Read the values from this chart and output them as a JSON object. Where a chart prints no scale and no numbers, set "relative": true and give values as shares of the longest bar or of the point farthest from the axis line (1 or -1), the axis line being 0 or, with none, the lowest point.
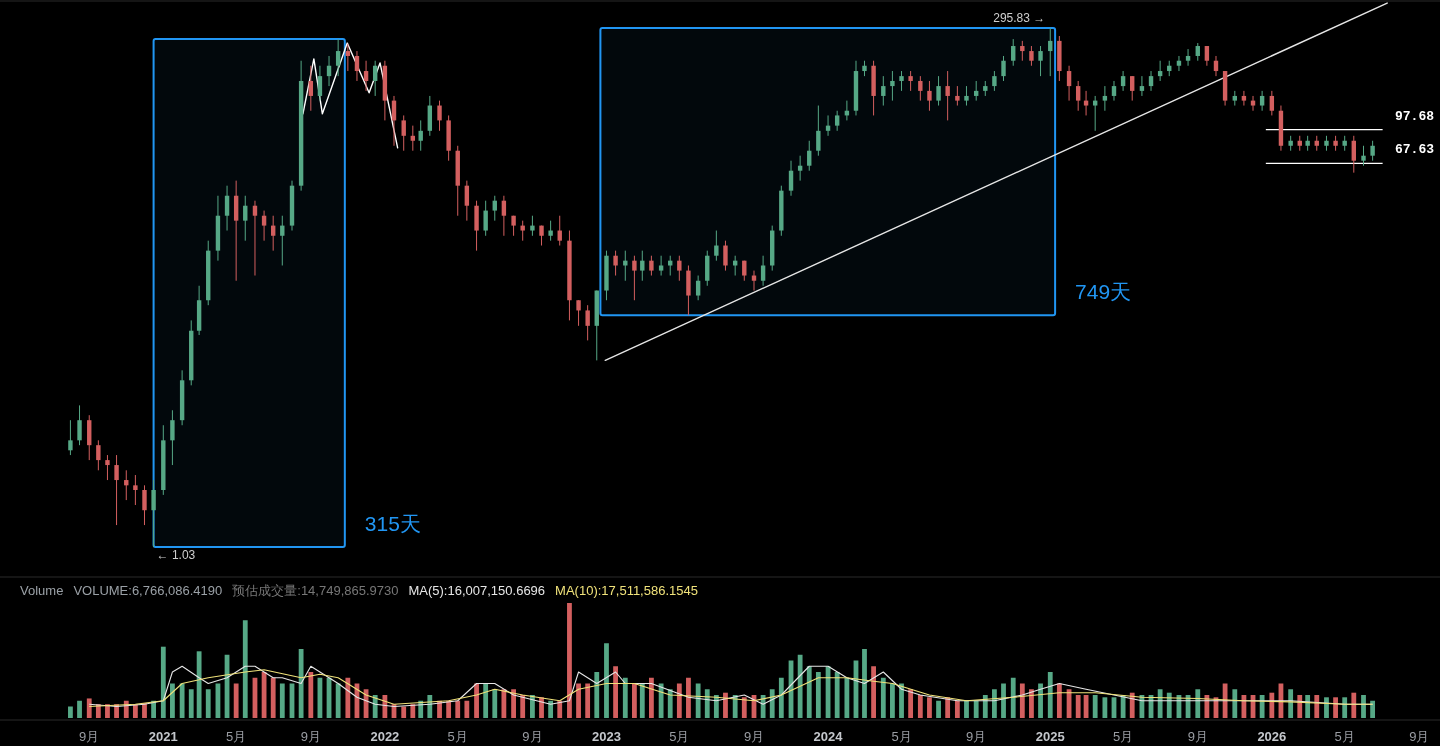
{
  "chart_data": [
    {
      "type": "candlestick",
      "log": true,
      "tick_labels": false,
      "xlim": [
        "2020-04-07",
        "2026-10-05"
      ],
      "ylim": [
        0.76,
        397
      ],
      "x": [
        "2020-08-01",
        "2020-08-16",
        "2020-09-01",
        "2020-09-16",
        "2020-10-01",
        "2020-10-16",
        "2020-11-01",
        "2020-11-16",
        "2020-12-01",
        "2020-12-16",
        "2021-01-01",
        "2021-01-16",
        "2021-02-01",
        "2021-02-16",
        "2021-03-01",
        "2021-03-16",
        "2021-04-01",
        "2021-04-16",
        "2021-05-01",
        "2021-05-16",
        "2021-06-01",
        "2021-06-16",
        "2021-07-01",
        "2021-07-16",
        "2021-08-01",
        "2021-08-16",
        "2021-09-01",
        "2021-09-16",
        "2021-10-01",
        "2021-10-16",
        "2021-11-01",
        "2021-11-16",
        "2021-12-01",
        "2021-12-16",
        "2022-01-01",
        "2022-01-16",
        "2022-02-01",
        "2022-02-16",
        "2022-03-01",
        "2022-03-16",
        "2022-04-01",
        "2022-04-16",
        "2022-05-01",
        "2022-05-16",
        "2022-06-01",
        "2022-06-16",
        "2022-07-01",
        "2022-07-16",
        "2022-08-01",
        "2022-08-16",
        "2022-09-01",
        "2022-09-16",
        "2022-10-01",
        "2022-10-16",
        "2022-11-01",
        "2022-11-16",
        "2022-12-01",
        "2022-12-16",
        "2023-01-01",
        "2023-01-16",
        "2023-02-01",
        "2023-02-16",
        "2023-03-01",
        "2023-03-16",
        "2023-04-01",
        "2023-04-16",
        "2023-05-01",
        "2023-05-16",
        "2023-06-01",
        "2023-06-16",
        "2023-07-01",
        "2023-07-16",
        "2023-08-01",
        "2023-08-16",
        "2023-09-01",
        "2023-09-16",
        "2023-10-01",
        "2023-10-16",
        "2023-11-01",
        "2023-11-16",
        "2023-12-01",
        "2023-12-16",
        "2024-01-01",
        "2024-01-16",
        "2024-02-01",
        "2024-02-16",
        "2024-03-01",
        "2024-03-16",
        "2024-04-01",
        "2024-04-16",
        "2024-05-01",
        "2024-05-16",
        "2024-06-01",
        "2024-06-16",
        "2024-07-01",
        "2024-07-16",
        "2024-08-01",
        "2024-08-16",
        "2024-09-01",
        "2024-09-16",
        "2024-10-01",
        "2024-10-16",
        "2024-11-01",
        "2024-11-16",
        "2024-12-01",
        "2024-12-16",
        "2025-01-01",
        "2025-01-16",
        "2025-02-01",
        "2025-02-16",
        "2025-03-01",
        "2025-03-16",
        "2025-04-01",
        "2025-04-16",
        "2025-05-01",
        "2025-05-16",
        "2025-06-01",
        "2025-06-16",
        "2025-07-01",
        "2025-07-16",
        "2025-08-01",
        "2025-08-16",
        "2025-09-01",
        "2025-09-16",
        "2025-10-01",
        "2025-10-16",
        "2025-11-01",
        "2025-11-16",
        "2025-12-01",
        "2025-12-16",
        "2026-01-01",
        "2026-01-16",
        "2026-02-01",
        "2026-02-16",
        "2026-03-01",
        "2026-03-16",
        "2026-04-01",
        "2026-04-16",
        "2026-05-01",
        "2026-05-16",
        "2026-06-01",
        "2026-06-16"
      ],
      "ohlc": [
        [
          2.96,
          4.11,
          2.81,
          3.3
        ],
        [
          3.3,
          4.83,
          3.13,
          4.11
        ],
        [
          4.11,
          4.34,
          2.66,
          3.13
        ],
        [
          3.13,
          3.3,
          2.38,
          2.66
        ],
        [
          2.66,
          2.81,
          2.14,
          2.52
        ],
        [
          2.52,
          2.81,
          1.31,
          2.14
        ],
        [
          2.14,
          2.38,
          1.72,
          2.02
        ],
        [
          2.02,
          2.26,
          1.63,
          1.92
        ],
        [
          1.92,
          2.02,
          1.31,
          1.54
        ],
        [
          1.54,
          2.14,
          1.03,
          1.92
        ],
        [
          1.92,
          3.89,
          1.82,
          3.3
        ],
        [
          3.3,
          4.58,
          2.52,
          4.11
        ],
        [
          4.11,
          7.08,
          3.89,
          6.35
        ],
        [
          6.35,
          12.2,
          6.01,
          10.9
        ],
        [
          10.9,
          17.8,
          10.4,
          15.2
        ],
        [
          15.2,
          29.1,
          14.4,
          26.1
        ],
        [
          26.1,
          47.5,
          23.4,
          38.2
        ],
        [
          38.2,
          53.0,
          32.5,
          47.5
        ],
        [
          47.5,
          56.0,
          18.8,
          36.2
        ],
        [
          36.2,
          47.5,
          29.1,
          42.6
        ],
        [
          42.6,
          45.0,
          19.9,
          38.2
        ],
        [
          38.2,
          40.4,
          29.1,
          34.3
        ],
        [
          34.3,
          38.2,
          26.1,
          30.7
        ],
        [
          30.7,
          38.2,
          22.2,
          34.3
        ],
        [
          34.3,
          56.0,
          32.5,
          53.0
        ],
        [
          53.0,
          207,
          50.2,
          166
        ],
        [
          166,
          196,
          120,
          141
        ],
        [
          141,
          196,
          134,
          175
        ],
        [
          175,
          218,
          157,
          196
        ],
        [
          196,
          262,
          175,
          230
        ],
        [
          230,
          249,
          185,
          218
        ],
        [
          218,
          230,
          166,
          185
        ],
        [
          185,
          207,
          149,
          166
        ],
        [
          166,
          207,
          141,
          196
        ],
        [
          196,
          207,
          108,
          134
        ],
        [
          134,
          141,
          81.9,
          108
        ],
        [
          108,
          114,
          77.6,
          91.3
        ],
        [
          91.3,
          102,
          77.6,
          86.5
        ],
        [
          86.5,
          108,
          77.6,
          96.4
        ],
        [
          96.4,
          141,
          91.3,
          127
        ],
        [
          127,
          134,
          96.4,
          108
        ],
        [
          108,
          114,
          69.6,
          77.6
        ],
        [
          77.6,
          81.9,
          38.2,
          53.0
        ],
        [
          53.0,
          56.0,
          36.2,
          42.6
        ],
        [
          42.6,
          45.0,
          26.1,
          32.5
        ],
        [
          32.5,
          45.0,
          30.7,
          40.4
        ],
        [
          40.4,
          47.5,
          36.2,
          45.0
        ],
        [
          45.0,
          47.5,
          30.7,
          38.2
        ],
        [
          38.2,
          38.2,
          30.7,
          34.3
        ],
        [
          34.3,
          36.2,
          29.1,
          32.5
        ],
        [
          32.5,
          38.2,
          30.7,
          34.3
        ],
        [
          34.3,
          34.3,
          27.6,
          30.7
        ],
        [
          30.7,
          36.2,
          29.1,
          32.5
        ],
        [
          32.5,
          38.2,
          27.6,
          29.1
        ],
        [
          29.1,
          32.5,
          12.2,
          15.2
        ],
        [
          15.2,
          15.2,
          11.5,
          13.6
        ],
        [
          13.6,
          14.4,
          9.81,
          11.5
        ],
        [
          11.5,
          16.9,
          7.89,
          16.9
        ],
        [
          16.9,
          26.1,
          15.2,
          24.7
        ],
        [
          24.7,
          26.1,
          19.9,
          22.2
        ],
        [
          22.2,
          26.1,
          18.8,
          23.4
        ],
        [
          23.4,
          24.7,
          15.2,
          21.0
        ],
        [
          21.0,
          26.1,
          18.8,
          23.4
        ],
        [
          23.4,
          24.7,
          19.9,
          21.0
        ],
        [
          21.0,
          24.7,
          19.9,
          22.2
        ],
        [
          22.2,
          24.7,
          19.9,
          23.4
        ],
        [
          23.4,
          24.7,
          18.8,
          21.0
        ],
        [
          21.0,
          22.2,
          12.9,
          16.0
        ],
        [
          16.0,
          19.9,
          15.2,
          18.8
        ],
        [
          18.8,
          26.1,
          17.8,
          24.7
        ],
        [
          24.7,
          32.5,
          23.4,
          27.6
        ],
        [
          27.6,
          29.1,
          21.0,
          22.2
        ],
        [
          22.2,
          24.7,
          19.9,
          23.4
        ],
        [
          23.4,
          23.4,
          18.8,
          19.9
        ],
        [
          19.9,
          21.0,
          16.9,
          18.8
        ],
        [
          18.8,
          24.7,
          17.8,
          22.2
        ],
        [
          22.2,
          34.3,
          21.0,
          32.5
        ],
        [
          32.5,
          53.0,
          30.7,
          50.2
        ],
        [
          50.2,
          69.6,
          47.5,
          62.4
        ],
        [
          62.4,
          73.5,
          56.0,
          65.9
        ],
        [
          65.9,
          86.5,
          62.4,
          77.6
        ],
        [
          77.6,
          127,
          73.5,
          96.4
        ],
        [
          96.4,
          114,
          91.3,
          102
        ],
        [
          102,
          120,
          96.4,
          114
        ],
        [
          114,
          134,
          108,
          120
        ],
        [
          120,
          207,
          114,
          185
        ],
        [
          185,
          207,
          175,
          196
        ],
        [
          196,
          207,
          114,
          141
        ],
        [
          141,
          175,
          127,
          157
        ],
        [
          157,
          185,
          134,
          166
        ],
        [
          166,
          185,
          149,
          175
        ],
        [
          175,
          185,
          149,
          166
        ],
        [
          166,
          175,
          134,
          149
        ],
        [
          149,
          166,
          120,
          134
        ],
        [
          134,
          175,
          127,
          157
        ],
        [
          157,
          185,
          108,
          141
        ],
        [
          141,
          157,
          127,
          134
        ],
        [
          134,
          157,
          127,
          141
        ],
        [
          141,
          166,
          134,
          149
        ],
        [
          149,
          166,
          141,
          157
        ],
        [
          157,
          185,
          149,
          175
        ],
        [
          175,
          218,
          166,
          207
        ],
        [
          207,
          262,
          196,
          243
        ],
        [
          243,
          257,
          207,
          230
        ],
        [
          230,
          243,
          196,
          207
        ],
        [
          207,
          243,
          175,
          230
        ],
        [
          230,
          295.83,
          175,
          257
        ],
        [
          257,
          271,
          166,
          185
        ],
        [
          185,
          196,
          134,
          157
        ],
        [
          157,
          166,
          120,
          134
        ],
        [
          134,
          149,
          114,
          127
        ],
        [
          127,
          141,
          96.4,
          134
        ],
        [
          134,
          157,
          120,
          141
        ],
        [
          141,
          166,
          134,
          157
        ],
        [
          157,
          185,
          149,
          175
        ],
        [
          175,
          175,
          134,
          149
        ],
        [
          149,
          175,
          141,
          157
        ],
        [
          157,
          185,
          149,
          175
        ],
        [
          175,
          207,
          166,
          185
        ],
        [
          185,
          207,
          175,
          196
        ],
        [
          196,
          218,
          185,
          207
        ],
        [
          207,
          235,
          196,
          218
        ],
        [
          218,
          251,
          207,
          243
        ],
        [
          243,
          243,
          196,
          207
        ],
        [
          207,
          218,
          175,
          185
        ],
        [
          185,
          185,
          127,
          134
        ],
        [
          134,
          149,
          127,
          141
        ],
        [
          141,
          149,
          127,
          134
        ],
        [
          134,
          141,
          120,
          127
        ],
        [
          127,
          149,
          120,
          141
        ],
        [
          141,
          149,
          114,
          120
        ],
        [
          120,
          127,
          77.6,
          81.9
        ],
        [
          81.9,
          91.3,
          77.6,
          86.5
        ],
        [
          86.5,
          91.3,
          77.6,
          81.9
        ],
        [
          81.9,
          91.3,
          77.6,
          86.5
        ],
        [
          86.5,
          91.3,
          77.6,
          81.9
        ],
        [
          81.9,
          91.3,
          77.6,
          86.5
        ],
        [
          86.5,
          91.3,
          77.6,
          81.9
        ],
        [
          81.9,
          91.3,
          77.6,
          86.5
        ],
        [
          86.5,
          91.3,
          61.1,
          69.6
        ],
        [
          69.6,
          81.9,
          65.9,
          73.5
        ],
        [
          73.5,
          86.5,
          69.6,
          81.9
        ]
      ],
      "series": [
        {
          "type": "line",
          "color": "#e6e6e6",
          "x": [
            "2022-12-30",
            "2026-07-10"
          ],
          "values": [
            7.89,
            388
          ]
        },
        {
          "type": "line",
          "color": "#ffffff",
          "x": [
            "2021-08-19",
            "2021-09-06",
            "2021-09-20",
            "2021-10-31",
            "2021-12-06",
            "2021-12-24",
            "2022-01-22"
          ],
          "values": [
            116,
            211,
            116,
            251,
            146,
            202,
            80.1
          ]
        }
      ],
      "bands": [
        {
          "axis": "x",
          "from": "2020-12-16",
          "to": "2021-10-27",
          "label": "315天",
          "color": "#2196f3"
        },
        {
          "axis": "x",
          "from": "2022-12-22",
          "to": "2025-01-09",
          "label": "749天",
          "color": "#2196f3"
        }
      ],
      "ref_lines": [
        {
          "axis": "y",
          "value": 97.68,
          "label": "97.68",
          "color": "#ffffff"
        },
        {
          "axis": "y",
          "value": 67.63,
          "label": "67.63",
          "color": "#ffffff"
        }
      ],
      "annotations": [
        {
          "text": "295.83 →",
          "x": "2025-01-01",
          "y": 295.83
        },
        {
          "text": "← 1.03",
          "x": "2020-12-16",
          "y": 1.03
        }
      ]
    },
    {
      "type": "bar",
      "relative": true,
      "title": "Volume",
      "legend": "top left",
      "tick_labels": "x",
      "xlim": [
        "2020-04-07",
        "2026-10-05"
      ],
      "xticks": [
        {
          "value": "2020-09-01",
          "label": "9月"
        },
        {
          "value": "2021-01-01",
          "label": "2021"
        },
        {
          "value": "2021-05-01",
          "label": "5月"
        },
        {
          "value": "2021-09-01",
          "label": "9月"
        },
        {
          "value": "2022-01-01",
          "label": "2022"
        },
        {
          "value": "2022-05-01",
          "label": "5月"
        },
        {
          "value": "2022-09-01",
          "label": "9月"
        },
        {
          "value": "2023-01-01",
          "label": "2023"
        },
        {
          "value": "2023-05-01",
          "label": "5月"
        },
        {
          "value": "2023-09-01",
          "label": "9月"
        },
        {
          "value": "2024-01-01",
          "label": "2024"
        },
        {
          "value": "2024-05-01",
          "label": "5月"
        },
        {
          "value": "2024-09-01",
          "label": "9月"
        },
        {
          "value": "2025-01-01",
          "label": "2025"
        },
        {
          "value": "2025-05-01",
          "label": "5月"
        },
        {
          "value": "2025-09-01",
          "label": "9月"
        },
        {
          "value": "2026-01-01",
          "label": "2026"
        },
        {
          "value": "2026-05-01",
          "label": "5月"
        },
        {
          "value": "2026-09-01",
          "label": "9月"
        }
      ],
      "x": [
        "2020-08-01",
        "2020-08-16",
        "2020-09-01",
        "2020-09-16",
        "2020-10-01",
        "2020-10-16",
        "2020-11-01",
        "2020-11-16",
        "2020-12-01",
        "2020-12-16",
        "2021-01-01",
        "2021-01-16",
        "2021-02-01",
        "2021-02-16",
        "2021-03-01",
        "2021-03-16",
        "2021-04-01",
        "2021-04-16",
        "2021-05-01",
        "2021-05-16",
        "2021-06-01",
        "2021-06-16",
        "2021-07-01",
        "2021-07-16",
        "2021-08-01",
        "2021-08-16",
        "2021-09-01",
        "2021-09-16",
        "2021-10-01",
        "2021-10-16",
        "2021-11-01",
        "2021-11-16",
        "2021-12-01",
        "2021-12-16",
        "2022-01-01",
        "2022-01-16",
        "2022-02-01",
        "2022-02-16",
        "2022-03-01",
        "2022-03-16",
        "2022-04-01",
        "2022-04-16",
        "2022-05-01",
        "2022-05-16",
        "2022-06-01",
        "2022-06-16",
        "2022-07-01",
        "2022-07-16",
        "2022-08-01",
        "2022-08-16",
        "2022-09-01",
        "2022-09-16",
        "2022-10-01",
        "2022-10-16",
        "2022-11-01",
        "2022-11-16",
        "2022-12-01",
        "2022-12-16",
        "2023-01-01",
        "2023-01-16",
        "2023-02-01",
        "2023-02-16",
        "2023-03-01",
        "2023-03-16",
        "2023-04-01",
        "2023-04-16",
        "2023-05-01",
        "2023-05-16",
        "2023-06-01",
        "2023-06-16",
        "2023-07-01",
        "2023-07-16",
        "2023-08-01",
        "2023-08-16",
        "2023-09-01",
        "2023-09-16",
        "2023-10-01",
        "2023-10-16",
        "2023-11-01",
        "2023-11-16",
        "2023-12-01",
        "2023-12-16",
        "2024-01-01",
        "2024-01-16",
        "2024-02-01",
        "2024-02-16",
        "2024-03-01",
        "2024-03-16",
        "2024-04-01",
        "2024-04-16",
        "2024-05-01",
        "2024-05-16",
        "2024-06-01",
        "2024-06-16",
        "2024-07-01",
        "2024-07-16",
        "2024-08-01",
        "2024-08-16",
        "2024-09-01",
        "2024-09-16",
        "2024-10-01",
        "2024-10-16",
        "2024-11-01",
        "2024-11-16",
        "2024-12-01",
        "2024-12-16",
        "2025-01-01",
        "2025-01-16",
        "2025-02-01",
        "2025-02-16",
        "2025-03-01",
        "2025-03-16",
        "2025-04-01",
        "2025-04-16",
        "2025-05-01",
        "2025-05-16",
        "2025-06-01",
        "2025-06-16",
        "2025-07-01",
        "2025-07-16",
        "2025-08-01",
        "2025-08-16",
        "2025-09-01",
        "2025-09-16",
        "2025-10-01",
        "2025-10-16",
        "2025-11-01",
        "2025-11-16",
        "2025-12-01",
        "2025-12-16",
        "2026-01-01",
        "2026-01-16",
        "2026-02-01",
        "2026-02-16",
        "2026-03-01",
        "2026-03-16",
        "2026-04-01",
        "2026-04-16",
        "2026-05-01",
        "2026-05-16",
        "2026-06-01",
        "2026-06-16"
      ],
      "annotations": [
        "预估成交量:14,749,865.9730"
      ],
      "series": [
        {
          "name": "VOLUME:6,766,086.4190",
          "values": [
            0.1,
            0.15,
            0.17,
            0.12,
            0.12,
            0.12,
            0.15,
            0.12,
            0.13,
            0.15,
            0.62,
            0.3,
            0.3,
            0.25,
            0.58,
            0.25,
            0.3,
            0.55,
            0.3,
            0.85,
            0.35,
            0.4,
            0.35,
            0.3,
            0.3,
            0.6,
            0.4,
            0.35,
            0.35,
            0.3,
            0.35,
            0.3,
            0.25,
            0.2,
            0.2,
            0.12,
            0.1,
            0.12,
            0.15,
            0.2,
            0.15,
            0.15,
            0.15,
            0.15,
            0.3,
            0.3,
            0.25,
            0.25,
            0.25,
            0.2,
            0.2,
            0.18,
            0.15,
            0.15,
            1,
            0.3,
            0.3,
            0.4,
            0.65,
            0.45,
            0.35,
            0.3,
            0.3,
            0.35,
            0.3,
            0.25,
            0.3,
            0.35,
            0.3,
            0.25,
            0.2,
            0.22,
            0.2,
            0.18,
            0.2,
            0.2,
            0.25,
            0.35,
            0.5,
            0.55,
            0.45,
            0.4,
            0.45,
            0.4,
            0.35,
            0.5,
            0.6,
            0.45,
            0.35,
            0.3,
            0.3,
            0.25,
            0.2,
            0.18,
            0.15,
            0.18,
            0.15,
            0.15,
            0.15,
            0.2,
            0.25,
            0.3,
            0.35,
            0.3,
            0.25,
            0.3,
            0.4,
            0.3,
            0.25,
            0.2,
            0.2,
            0.2,
            0.18,
            0.18,
            0.2,
            0.22,
            0.2,
            0.2,
            0.25,
            0.22,
            0.2,
            0.2,
            0.25,
            0.2,
            0.18,
            0.3,
            0.25,
            0.2,
            0.2,
            0.2,
            0.22,
            0.3,
            0.25,
            0.2,
            0.2,
            0.2,
            0.18,
            0.18,
            0.18,
            0.22,
            0.2,
            0.15
          ],
          "colors": [
            "#56a886",
            "#56a886",
            "#d35f5f",
            "#d35f5f",
            "#d35f5f",
            "#d35f5f",
            "#d35f5f",
            "#d35f5f",
            "#d35f5f",
            "#56a886",
            "#56a886",
            "#56a886",
            "#56a886",
            "#56a886",
            "#56a886",
            "#56a886",
            "#56a886",
            "#56a886",
            "#d35f5f",
            "#56a886",
            "#d35f5f",
            "#d35f5f",
            "#d35f5f",
            "#56a886",
            "#56a886",
            "#56a886",
            "#d35f5f",
            "#56a886",
            "#56a886",
            "#56a886",
            "#d35f5f",
            "#d35f5f",
            "#d35f5f",
            "#56a886",
            "#d35f5f",
            "#d35f5f",
            "#d35f5f",
            "#d35f5f",
            "#56a886",
            "#56a886",
            "#d35f5f",
            "#d35f5f",
            "#d35f5f",
            "#d35f5f",
            "#d35f5f",
            "#56a886",
            "#56a886",
            "#d35f5f",
            "#d35f5f",
            "#d35f5f",
            "#56a886",
            "#d35f5f",
            "#56a886",
            "#d35f5f",
            "#d35f5f",
            "#d35f5f",
            "#d35f5f",
            "#56a886",
            "#56a886",
            "#d35f5f",
            "#56a886",
            "#d35f5f",
            "#56a886",
            "#d35f5f",
            "#56a886",
            "#56a886",
            "#d35f5f",
            "#d35f5f",
            "#56a886",
            "#56a886",
            "#56a886",
            "#d35f5f",
            "#56a886",
            "#d35f5f",
            "#d35f5f",
            "#56a886",
            "#56a886",
            "#56a886",
            "#56a886",
            "#56a886",
            "#56a886",
            "#56a886",
            "#56a886",
            "#56a886",
            "#56a886",
            "#56a886",
            "#56a886",
            "#d35f5f",
            "#56a886",
            "#56a886",
            "#56a886",
            "#d35f5f",
            "#d35f5f",
            "#d35f5f",
            "#56a886",
            "#d35f5f",
            "#d35f5f",
            "#56a886",
            "#56a886",
            "#56a886",
            "#56a886",
            "#56a886",
            "#56a886",
            "#d35f5f",
            "#d35f5f",
            "#56a886",
            "#56a886",
            "#d35f5f",
            "#d35f5f",
            "#d35f5f",
            "#d35f5f",
            "#56a886",
            "#56a886",
            "#56a886",
            "#56a886",
            "#d35f5f",
            "#56a886",
            "#56a886",
            "#56a886",
            "#56a886",
            "#56a886",
            "#56a886",
            "#56a886",
            "#d35f5f",
            "#d35f5f",
            "#d35f5f",
            "#56a886",
            "#d35f5f",
            "#d35f5f",
            "#56a886",
            "#d35f5f",
            "#d35f5f",
            "#56a886",
            "#d35f5f",
            "#56a886",
            "#d35f5f",
            "#56a886",
            "#d35f5f",
            "#56a886",
            "#d35f5f",
            "#56a886",
            "#56a886"
          ]
        },
        {
          "type": "line",
          "name": "MA(5):16,007,150.6696",
          "color": "#e6e6e6",
          "x": [
            "2020-09-01",
            "2020-10-16",
            "2020-12-01",
            "2021-01-01",
            "2021-01-16",
            "2021-02-01",
            "2021-03-01",
            "2021-03-16",
            "2021-04-16",
            "2021-05-16",
            "2021-06-01",
            "2021-07-01",
            "2021-07-16",
            "2021-08-16",
            "2021-09-01",
            "2021-09-16",
            "2021-10-16",
            "2021-11-16",
            "2021-12-16",
            "2022-01-16",
            "2022-03-16",
            "2022-05-01",
            "2022-06-01",
            "2022-07-01",
            "2022-08-01",
            "2022-10-01",
            "2022-11-01",
            "2022-11-16",
            "2022-12-16",
            "2023-01-16",
            "2023-02-01",
            "2023-03-16",
            "2023-05-16",
            "2023-07-01",
            "2023-08-16",
            "2023-09-16",
            "2023-10-16",
            "2023-12-01",
            "2024-01-01",
            "2024-02-01",
            "2024-03-01",
            "2024-04-01",
            "2024-05-01",
            "2024-06-01",
            "2024-08-01",
            "2024-10-01",
            "2024-11-16",
            "2024-12-16",
            "2025-01-16",
            "2025-03-01",
            "2025-04-16",
            "2025-06-01",
            "2025-09-01",
            "2025-11-16",
            "2026-02-01",
            "2026-05-01",
            "2026-06-16"
          ],
          "values": [
            0.12,
            0.1,
            0.12,
            0.15,
            0.4,
            0.45,
            0.35,
            0.3,
            0.35,
            0.45,
            0.45,
            0.35,
            0.35,
            0.3,
            0.45,
            0.4,
            0.3,
            0.18,
            0.12,
            0.1,
            0.12,
            0.15,
            0.3,
            0.3,
            0.2,
            0.12,
            0.15,
            0.4,
            0.3,
            0.4,
            0.3,
            0.3,
            0.18,
            0.15,
            0.2,
            0.12,
            0.2,
            0.45,
            0.45,
            0.35,
            0.3,
            0.4,
            0.25,
            0.2,
            0.15,
            0.15,
            0.2,
            0.25,
            0.3,
            0.25,
            0.2,
            0.15,
            0.15,
            0.15,
            0.15,
            0.12,
            0.12
          ]
        },
        {
          "type": "line",
          "name": "MA(10):17,511,586.1545",
          "color": "#f0e27a",
          "x": [
            "2020-09-01",
            "2020-11-16",
            "2021-01-01",
            "2021-02-01",
            "2021-03-16",
            "2021-05-16",
            "2021-06-16",
            "2021-08-16",
            "2021-09-16",
            "2021-10-16",
            "2021-12-01",
            "2022-01-16",
            "2022-04-16",
            "2022-06-01",
            "2022-07-01",
            "2022-08-16",
            "2022-10-16",
            "2022-11-16",
            "2023-01-01",
            "2023-02-16",
            "2023-04-16",
            "2023-07-01",
            "2023-09-01",
            "2023-10-16",
            "2023-12-16",
            "2024-02-01",
            "2024-03-16",
            "2024-04-16",
            "2024-06-16",
            "2024-08-16",
            "2024-11-01",
            "2025-01-16",
            "2025-03-16",
            "2025-06-01",
            "2025-09-01",
            "2025-11-16",
            "2026-02-01",
            "2026-05-01",
            "2026-06-16"
          ],
          "values": [
            0.1,
            0.12,
            0.15,
            0.3,
            0.35,
            0.4,
            0.42,
            0.35,
            0.38,
            0.35,
            0.2,
            0.12,
            0.15,
            0.2,
            0.25,
            0.2,
            0.15,
            0.25,
            0.3,
            0.3,
            0.2,
            0.18,
            0.15,
            0.2,
            0.35,
            0.35,
            0.32,
            0.3,
            0.2,
            0.15,
            0.18,
            0.22,
            0.22,
            0.18,
            0.17,
            0.15,
            0.14,
            0.12,
            0.12
          ]
        }
      ]
    }
  ]
}
